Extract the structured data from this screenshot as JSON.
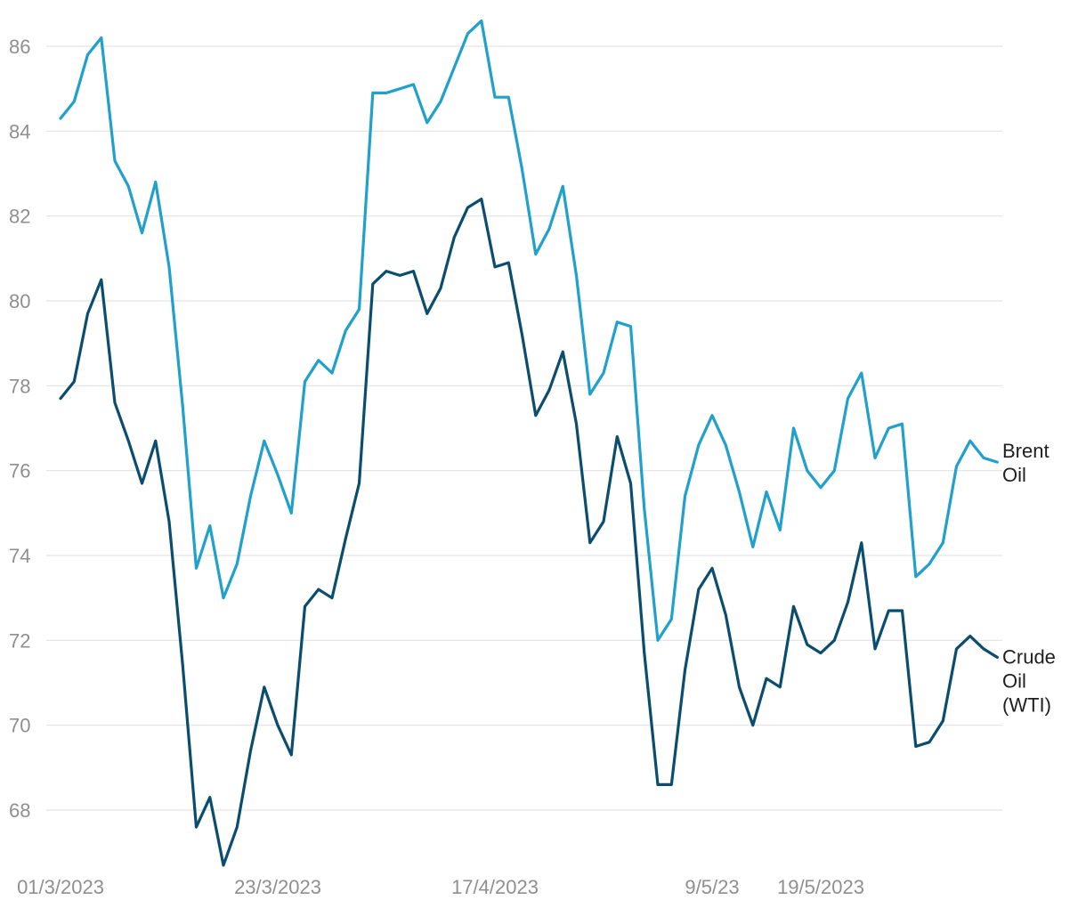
{
  "chart_data": {
    "type": "line",
    "title": "",
    "xlabel": "",
    "ylabel": "",
    "ylim": [
      66.8,
      86.8
    ],
    "yticks": [
      68,
      70,
      72,
      74,
      76,
      78,
      80,
      82,
      84,
      86
    ],
    "grid": true,
    "legend": "direct labels at right end of lines",
    "x_tick_labels": [
      {
        "label": "01/3/2023",
        "index": 0
      },
      {
        "label": "23/3/2023",
        "index": 16
      },
      {
        "label": "17/4/2023",
        "index": 32
      },
      {
        "label": "9/5/23",
        "index": 48
      },
      {
        "label": "19/5/2023",
        "index": 56
      }
    ],
    "series": [
      {
        "name": "Brent Oil",
        "label_lines": [
          "Brent",
          "Oil"
        ],
        "color": "#20a0cc",
        "values": [
          84.3,
          84.7,
          85.8,
          86.2,
          83.3,
          82.7,
          81.6,
          82.8,
          80.8,
          77.5,
          73.7,
          74.7,
          73.0,
          73.8,
          75.4,
          76.7,
          75.9,
          75.0,
          78.1,
          78.6,
          78.3,
          79.3,
          79.8,
          84.9,
          84.9,
          85.0,
          85.1,
          84.2,
          84.7,
          85.5,
          86.3,
          86.6,
          84.8,
          84.8,
          83.1,
          81.1,
          81.7,
          82.7,
          80.6,
          77.8,
          78.3,
          79.5,
          79.4,
          75.1,
          72.0,
          72.5,
          75.4,
          76.6,
          77.3,
          76.6,
          75.5,
          74.2,
          75.5,
          74.6,
          77.0,
          76.0,
          75.6,
          76.0,
          77.7,
          78.3,
          76.3,
          77.0,
          77.1,
          73.5,
          73.8,
          74.3,
          76.1,
          76.7,
          76.3,
          76.2
        ]
      },
      {
        "name": "Crude Oil (WTI)",
        "label_lines": [
          "Crude",
          "Oil",
          "(WTI)"
        ],
        "color": "#0a4d6e",
        "values": [
          77.7,
          78.1,
          79.7,
          80.5,
          77.6,
          76.7,
          75.7,
          76.7,
          74.8,
          71.4,
          67.6,
          68.3,
          66.7,
          67.6,
          69.4,
          70.9,
          70.0,
          69.3,
          72.8,
          73.2,
          73.0,
          74.4,
          75.7,
          80.4,
          80.7,
          80.6,
          80.7,
          79.7,
          80.3,
          81.5,
          82.2,
          82.4,
          80.8,
          80.9,
          79.2,
          77.3,
          77.9,
          78.8,
          77.1,
          74.3,
          74.8,
          76.8,
          75.7,
          71.7,
          68.6,
          68.6,
          71.3,
          73.2,
          73.7,
          72.6,
          70.9,
          70.0,
          71.1,
          70.9,
          72.8,
          71.9,
          71.7,
          72.0,
          72.9,
          74.3,
          71.8,
          72.7,
          72.7,
          69.5,
          69.6,
          70.1,
          71.8,
          72.1,
          71.8,
          71.6
        ]
      }
    ]
  }
}
